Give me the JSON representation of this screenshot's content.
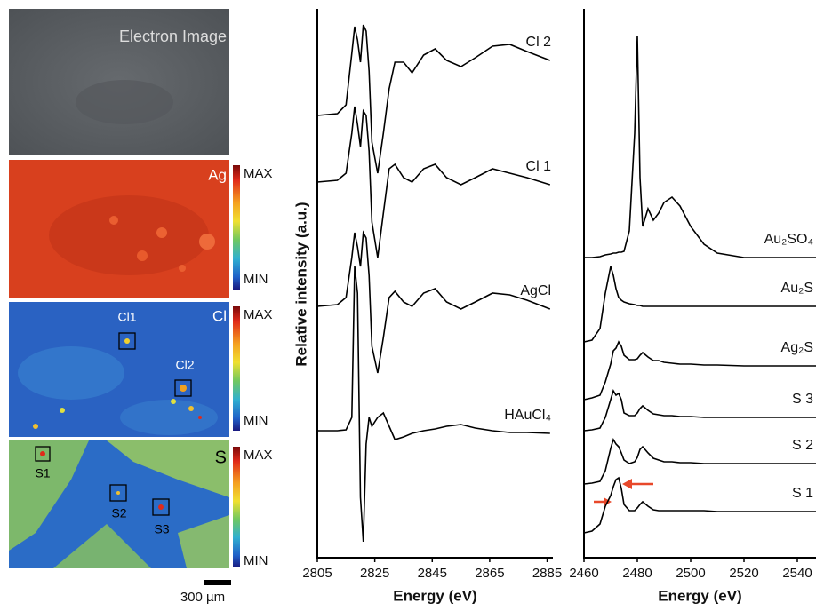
{
  "maps": {
    "panels": [
      {
        "label": "Electron Image"
      },
      {
        "label": "Ag",
        "scale": [
          "MAX",
          "MIN"
        ]
      },
      {
        "label": "Cl",
        "scale": [
          "MAX",
          "MIN"
        ],
        "regions": [
          "Cl1",
          "Cl2"
        ]
      },
      {
        "label": "S",
        "scale": [
          "MAX",
          "MIN"
        ],
        "regions": [
          "S1",
          "S2",
          "S3"
        ]
      }
    ],
    "scale_bar": "300 µm"
  },
  "chart_data": [
    {
      "type": "line",
      "xlabel": "Energy (eV)",
      "ylabel": "Relative intensity (a.u.)",
      "xlim": [
        2805,
        2887
      ],
      "xticks": [
        2805,
        2825,
        2845,
        2865,
        2885
      ],
      "ylim": [
        0,
        618
      ],
      "x": [
        2805,
        2812,
        2815,
        2817,
        2818,
        2819,
        2820,
        2821,
        2822,
        2823,
        2824,
        2826,
        2828,
        2830,
        2832,
        2835,
        2838,
        2842,
        2846,
        2850,
        2855,
        2860,
        2866,
        2872,
        2878,
        2886
      ],
      "series": [
        {
          "name": "Cl 2",
          "color": "#000000",
          "values": [
            498,
            500,
            510,
            568,
            598,
            583,
            558,
            600,
            593,
            548,
            468,
            433,
            478,
            528,
            558,
            558,
            546,
            566,
            573,
            560,
            553,
            563,
            576,
            578,
            570,
            560
          ]
        },
        {
          "name": "Cl 1",
          "color": "#000000",
          "values": [
            423,
            425,
            433,
            478,
            508,
            488,
            463,
            503,
            498,
            458,
            378,
            338,
            388,
            438,
            443,
            428,
            423,
            438,
            443,
            428,
            420,
            428,
            438,
            433,
            428,
            420
          ]
        },
        {
          "name": "AgCl",
          "color": "#000000",
          "values": [
            283,
            285,
            293,
            338,
            366,
            350,
            328,
            366,
            360,
            318,
            238,
            208,
            248,
            293,
            300,
            288,
            283,
            298,
            303,
            288,
            280,
            288,
            298,
            296,
            290,
            280
          ]
        },
        {
          "name": "HAuCl₄",
          "color": "#000000",
          "values": [
            143,
            143,
            144,
            158,
            328,
            298,
            68,
            18,
            128,
            158,
            148,
            158,
            163,
            148,
            133,
            136,
            140,
            143,
            145,
            148,
            150,
            146,
            143,
            141,
            141,
            140
          ]
        }
      ]
    },
    {
      "type": "line",
      "xlabel": "Energy (eV)",
      "xlim": [
        2460,
        2547
      ],
      "xticks": [
        2460,
        2480,
        2500,
        2520,
        2540
      ],
      "ylim": [
        0,
        618
      ],
      "x": [
        2460,
        2463,
        2466,
        2468,
        2470,
        2471,
        2472,
        2473,
        2474,
        2475,
        2477,
        2479,
        2480,
        2481,
        2482,
        2484,
        2486,
        2488,
        2490,
        2493,
        2496,
        2500,
        2505,
        2510,
        2520,
        2530,
        2547
      ],
      "series": [
        {
          "name": "Au₂SO₄",
          "color": "#000000",
          "values": [
            338,
            338,
            339,
            341,
            342,
            343,
            343,
            344,
            344,
            345,
            368,
            478,
            588,
            428,
            373,
            393,
            380,
            388,
            400,
            406,
            396,
            373,
            353,
            343,
            338,
            338,
            338
          ]
        },
        {
          "name": "Au₂S",
          "color": "#000000",
          "values": [
            243,
            245,
            258,
            298,
            328,
            318,
            303,
            293,
            290,
            288,
            286,
            285,
            284,
            284,
            283,
            283,
            283,
            283,
            283,
            283,
            283,
            283,
            283,
            283,
            283,
            283,
            283
          ]
        },
        {
          "name": "Ag₂S",
          "color": "#000000",
          "values": [
            178,
            180,
            183,
            198,
            218,
            233,
            236,
            243,
            238,
            228,
            223,
            223,
            224,
            228,
            231,
            226,
            222,
            222,
            220,
            219,
            218,
            218,
            217,
            217,
            216,
            216,
            216
          ]
        },
        {
          "name": "S 3",
          "color": "#000000",
          "values": [
            143,
            144,
            146,
            158,
            178,
            188,
            183,
            185,
            178,
            163,
            160,
            160,
            163,
            168,
            171,
            166,
            162,
            161,
            160,
            160,
            159,
            159,
            158,
            158,
            158,
            158,
            158
          ]
        },
        {
          "name": "S 2",
          "color": "#000000",
          "values": [
            83,
            84,
            86,
            98,
            123,
            133,
            128,
            125,
            118,
            110,
            106,
            108,
            113,
            122,
            125,
            118,
            112,
            110,
            108,
            108,
            107,
            107,
            106,
            106,
            106,
            106,
            106
          ]
        },
        {
          "name": "S 1",
          "color": "#000000",
          "values": [
            28,
            30,
            38,
            58,
            70,
            80,
            88,
            90,
            78,
            60,
            53,
            53,
            56,
            60,
            63,
            58,
            54,
            53,
            53,
            53,
            53,
            53,
            53,
            52,
            52,
            52,
            52
          ]
        }
      ]
    }
  ]
}
